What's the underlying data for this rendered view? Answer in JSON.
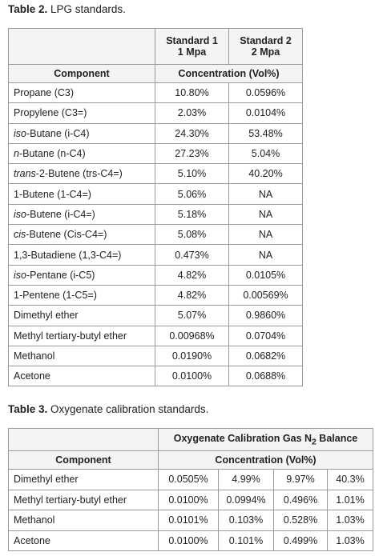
{
  "table2": {
    "caption": {
      "label": "Table 2.",
      "text": " LPG standards."
    },
    "header": {
      "standards": [
        [
          "Standard 1",
          "1 Mpa"
        ],
        [
          "Standard 2",
          "2 Mpa"
        ]
      ],
      "component": "Component",
      "concentration": "Concentration (Vol%)"
    },
    "rows": [
      [
        "Propane (C3)",
        "10.80%",
        "0.0596%"
      ],
      [
        "Propylene (C3=)",
        "2.03%",
        "0.0104%"
      ],
      [
        {
          "em": "iso",
          "rest": "-Butane (i-C4)"
        },
        "24.30%",
        "53.48%"
      ],
      [
        {
          "em": "n",
          "rest": "-Butane (n-C4)"
        },
        "27.23%",
        "5.04%"
      ],
      [
        {
          "em": "trans",
          "rest": "-2-Butene (trs-C4=)"
        },
        "5.10%",
        "40.20%"
      ],
      [
        "1-Butene (1-C4=)",
        "5.06%",
        "NA"
      ],
      [
        {
          "em": "iso",
          "rest": "-Butene (i-C4=)"
        },
        "5.18%",
        "NA"
      ],
      [
        {
          "em": "cis",
          "rest": "-Butene (Cis-C4=)"
        },
        "5.08%",
        "NA"
      ],
      [
        "1,3-Butadiene (1,3-C4=)",
        "0.473%",
        "NA"
      ],
      [
        {
          "em": "iso",
          "rest": "-Pentane (i-C5)"
        },
        "4.82%",
        "0.0105%"
      ],
      [
        "1-Pentene (1-C5=)",
        "4.82%",
        "0.00569%"
      ],
      [
        "Dimethyl ether",
        "5.07%",
        "0.9860%"
      ],
      [
        "Methyl tertiary-butyl ether",
        "0.00968%",
        "0.0704%"
      ],
      [
        "Methanol",
        "0.0190%",
        "0.0682%"
      ],
      [
        "Acetone",
        "0.0100%",
        "0.0688%"
      ]
    ]
  },
  "table3": {
    "caption": {
      "label": "Table 3.",
      "text": " Oxygenate calibration standards."
    },
    "header": {
      "title": {
        "before": "Oxygenate Calibration Gas N",
        "sub": "2",
        "after": " Balance"
      },
      "component": "Component",
      "concentration": "Concentration (Vol%)"
    },
    "rows": [
      [
        "Dimethyl ether",
        "0.0505%",
        "4.99%",
        "9.97%",
        "40.3%"
      ],
      [
        "Methyl tertiary-butyl ether",
        "0.0100%",
        "0.0994%",
        "0.496%",
        "1.01%"
      ],
      [
        "Methanol",
        "0.0101%",
        "0.103%",
        "0.528%",
        "1.03%"
      ],
      [
        "Acetone",
        "0.0100%",
        "0.101%",
        "0.499%",
        "1.03%"
      ]
    ]
  }
}
